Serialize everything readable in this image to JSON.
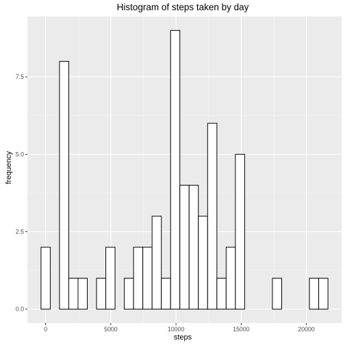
{
  "chart_data": {
    "type": "bar",
    "subtype": "histogram",
    "title": "Histogram of steps taken by day",
    "xlabel": "steps",
    "ylabel": "frequency",
    "bin_width": 710,
    "bin_starts": [
      -355,
      355,
      1065,
      1775,
      2485,
      3195,
      3905,
      4615,
      5325,
      6035,
      6745,
      7455,
      8165,
      8875,
      9585,
      10295,
      11005,
      11715,
      12425,
      13135,
      13845,
      14555,
      15265,
      15975,
      16685,
      17395,
      18105,
      18815,
      19525,
      20235,
      20945
    ],
    "values": [
      2,
      0,
      8,
      1,
      1,
      0,
      1,
      2,
      0,
      1,
      2,
      2,
      3,
      1,
      9,
      4,
      4,
      3,
      6,
      1,
      2,
      5,
      0,
      0,
      0,
      1,
      0,
      0,
      0,
      1,
      1
    ],
    "xlim": [
      -1400,
      22700
    ],
    "ylim": [
      -0.45,
      9.45
    ],
    "x_ticks": [
      0,
      5000,
      10000,
      15000,
      20000
    ],
    "x_tick_labels": [
      "0",
      "5000",
      "10000",
      "15000",
      "20000"
    ],
    "y_ticks": [
      0,
      2.5,
      5,
      7.5
    ],
    "y_tick_labels": [
      "0.0",
      "2.5",
      "5.0",
      "7.5"
    ],
    "grid": true,
    "theme": {
      "panel_background": "#ebebeb",
      "grid_major": "#ffffff",
      "grid_minor": "#f5f5f5",
      "bar_fill": "#ffffff",
      "bar_stroke": "#000000"
    }
  }
}
